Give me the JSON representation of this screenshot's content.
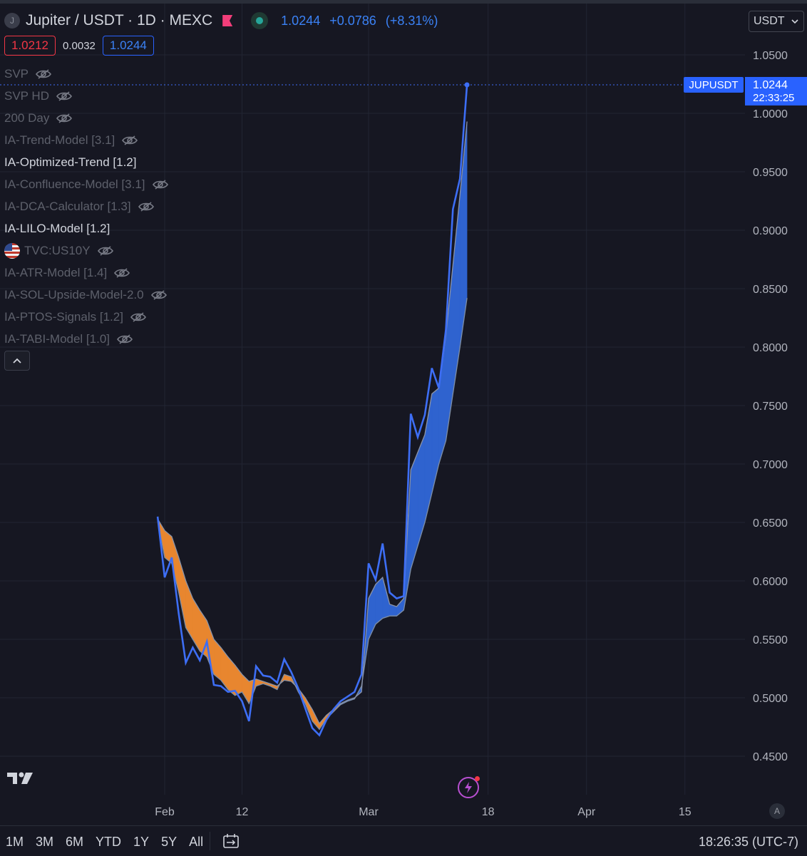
{
  "header": {
    "symbol_icon": "J",
    "title": "Jupiter / USDT · 1D · MEXC",
    "last": "1.0244",
    "change": "+0.0786",
    "change_pct": "(+8.31%)",
    "bid": "1.0212",
    "spread": "0.0032",
    "ask": "1.0244"
  },
  "currency": {
    "value": "USDT"
  },
  "indicators": [
    {
      "label": "SVP",
      "visible": false
    },
    {
      "label": "SVP HD",
      "visible": false
    },
    {
      "label": "200 Day",
      "visible": false
    },
    {
      "label": "IA-Trend-Model [3.1]",
      "visible": false
    },
    {
      "label": "IA-Optimized-Trend [1.2]",
      "visible": true
    },
    {
      "label": "IA-Confluence-Model [3.1]",
      "visible": false
    },
    {
      "label": "IA-DCA-Calculator [1.3]",
      "visible": false
    },
    {
      "label": "IA-LILO-Model [1.2]",
      "visible": true
    },
    {
      "label": "TVC:US10Y",
      "visible": false,
      "flag": true
    },
    {
      "label": "IA-ATR-Model [1.4]",
      "visible": false
    },
    {
      "label": "IA-SOL-Upside-Model-2.0",
      "visible": false
    },
    {
      "label": "IA-PTOS-Signals [1.2]",
      "visible": false
    },
    {
      "label": "IA-TABI-Model [1.0]",
      "visible": false
    }
  ],
  "price_tag": {
    "symbol": "JUPUSDT",
    "price": "1.0244",
    "countdown": "22:33:25"
  },
  "bottom": {
    "ranges": [
      "1M",
      "3M",
      "6M",
      "YTD",
      "1Y",
      "5Y",
      "All"
    ],
    "clock": "18:26:35 (UTC-7)",
    "auto": "A"
  },
  "colors": {
    "price_line": "#3d6ef5",
    "bear_fill": "#e8862f",
    "bull_fill": "#2f63cf",
    "background": "#161722"
  },
  "chart_data": {
    "type": "line",
    "title": "Jupiter / USDT · 1D · MEXC",
    "ylim": [
      0.42,
      1.07
    ],
    "yticks": [
      0.45,
      0.5,
      0.55,
      0.6,
      0.65,
      0.7,
      0.75,
      0.8,
      0.85,
      0.9,
      0.95,
      1.0,
      1.05
    ],
    "ytick_labels": [
      "0.4500",
      "0.5000",
      "0.5500",
      "0.6000",
      "0.6500",
      "0.7000",
      "0.7500",
      "0.8000",
      "0.8500",
      "0.9000",
      "0.9500",
      "1.0000",
      "1.0500"
    ],
    "x_start": "2024-01-31",
    "x_end": "2024-04-20",
    "xticks": [
      {
        "date": "2024-02-01",
        "label": "Feb"
      },
      {
        "date": "2024-02-12",
        "label": "12"
      },
      {
        "date": "2024-03-01",
        "label": "Mar"
      },
      {
        "date": "2024-03-18",
        "label": "18"
      },
      {
        "date": "2024-04-01",
        "label": "Apr"
      },
      {
        "date": "2024-04-15",
        "label": "15"
      }
    ],
    "grid": true,
    "series": [
      {
        "name": "JUPUSDT",
        "x": [
          "2024-01-31",
          "2024-02-01",
          "2024-02-02",
          "2024-02-03",
          "2024-02-04",
          "2024-02-05",
          "2024-02-06",
          "2024-02-07",
          "2024-02-08",
          "2024-02-09",
          "2024-02-10",
          "2024-02-11",
          "2024-02-12",
          "2024-02-13",
          "2024-02-14",
          "2024-02-15",
          "2024-02-16",
          "2024-02-17",
          "2024-02-18",
          "2024-02-19",
          "2024-02-20",
          "2024-02-21",
          "2024-02-22",
          "2024-02-23",
          "2024-02-24",
          "2024-02-25",
          "2024-02-26",
          "2024-02-27",
          "2024-02-28",
          "2024-02-29",
          "2024-03-01",
          "2024-03-02",
          "2024-03-03",
          "2024-03-04",
          "2024-03-05",
          "2024-03-06",
          "2024-03-07",
          "2024-03-08",
          "2024-03-09",
          "2024-03-10",
          "2024-03-11",
          "2024-03-12",
          "2024-03-13",
          "2024-03-14",
          "2024-03-15"
        ],
        "values": [
          0.655,
          0.603,
          0.62,
          0.572,
          0.53,
          0.543,
          0.532,
          0.548,
          0.511,
          0.51,
          0.505,
          0.506,
          0.497,
          0.48,
          0.527,
          0.519,
          0.518,
          0.513,
          0.533,
          0.522,
          0.508,
          0.491,
          0.474,
          0.468,
          0.481,
          0.49,
          0.497,
          0.501,
          0.505,
          0.52,
          0.615,
          0.601,
          0.632,
          0.59,
          0.585,
          0.587,
          0.743,
          0.723,
          0.742,
          0.782,
          0.765,
          0.815,
          0.918,
          0.944,
          1.0244
        ]
      },
      {
        "name": "IA-Optimized-Trend [1.2]",
        "x": [
          "2024-01-31",
          "2024-02-01",
          "2024-02-02",
          "2024-02-03",
          "2024-02-04",
          "2024-02-05",
          "2024-02-06",
          "2024-02-07",
          "2024-02-08",
          "2024-02-09",
          "2024-02-10",
          "2024-02-11",
          "2024-02-12",
          "2024-02-13",
          "2024-02-14",
          "2024-02-15",
          "2024-02-16",
          "2024-02-17",
          "2024-02-18",
          "2024-02-19",
          "2024-02-20",
          "2024-02-21",
          "2024-02-22",
          "2024-02-23",
          "2024-02-24",
          "2024-02-25",
          "2024-02-26",
          "2024-02-27",
          "2024-02-28",
          "2024-02-29",
          "2024-03-01",
          "2024-03-02",
          "2024-03-03",
          "2024-03-04",
          "2024-03-05",
          "2024-03-06",
          "2024-03-07",
          "2024-03-08",
          "2024-03-09",
          "2024-03-10",
          "2024-03-11",
          "2024-03-12",
          "2024-03-13",
          "2024-03-14",
          "2024-03-15"
        ],
        "values": [
          0.653,
          0.643,
          0.638,
          0.62,
          0.6,
          0.585,
          0.575,
          0.566,
          0.55,
          0.543,
          0.535,
          0.528,
          0.52,
          0.514,
          0.516,
          0.514,
          0.512,
          0.51,
          0.515,
          0.514,
          0.508,
          0.5,
          0.49,
          0.478,
          0.485,
          0.49,
          0.495,
          0.498,
          0.5,
          0.505,
          0.585,
          0.597,
          0.603,
          0.58,
          0.578,
          0.585,
          0.695,
          0.71,
          0.725,
          0.76,
          0.765,
          0.81,
          0.87,
          0.93,
          0.993
        ]
      },
      {
        "name": "IA-LILO-Model [1.2]",
        "x": [
          "2024-01-31",
          "2024-02-01",
          "2024-02-02",
          "2024-02-03",
          "2024-02-04",
          "2024-02-05",
          "2024-02-06",
          "2024-02-07",
          "2024-02-08",
          "2024-02-09",
          "2024-02-10",
          "2024-02-11",
          "2024-02-12",
          "2024-02-13",
          "2024-02-14",
          "2024-02-15",
          "2024-02-16",
          "2024-02-17",
          "2024-02-18",
          "2024-02-19",
          "2024-02-20",
          "2024-02-21",
          "2024-02-22",
          "2024-02-23",
          "2024-02-24",
          "2024-02-25",
          "2024-02-26",
          "2024-02-27",
          "2024-02-28",
          "2024-02-29",
          "2024-03-01",
          "2024-03-02",
          "2024-03-03",
          "2024-03-04",
          "2024-03-05",
          "2024-03-06",
          "2024-03-07",
          "2024-03-08",
          "2024-03-09",
          "2024-03-10",
          "2024-03-11",
          "2024-03-12",
          "2024-03-13",
          "2024-03-14",
          "2024-03-15"
        ],
        "values": [
          0.652,
          0.62,
          0.615,
          0.59,
          0.56,
          0.55,
          0.54,
          0.535,
          0.52,
          0.515,
          0.507,
          0.502,
          0.505,
          0.495,
          0.51,
          0.512,
          0.51,
          0.507,
          0.52,
          0.518,
          0.505,
          0.495,
          0.48,
          0.473,
          0.482,
          0.488,
          0.494,
          0.497,
          0.499,
          0.51,
          0.55,
          0.563,
          0.568,
          0.57,
          0.57,
          0.575,
          0.61,
          0.63,
          0.65,
          0.675,
          0.7,
          0.72,
          0.76,
          0.8,
          0.842
        ]
      }
    ]
  }
}
